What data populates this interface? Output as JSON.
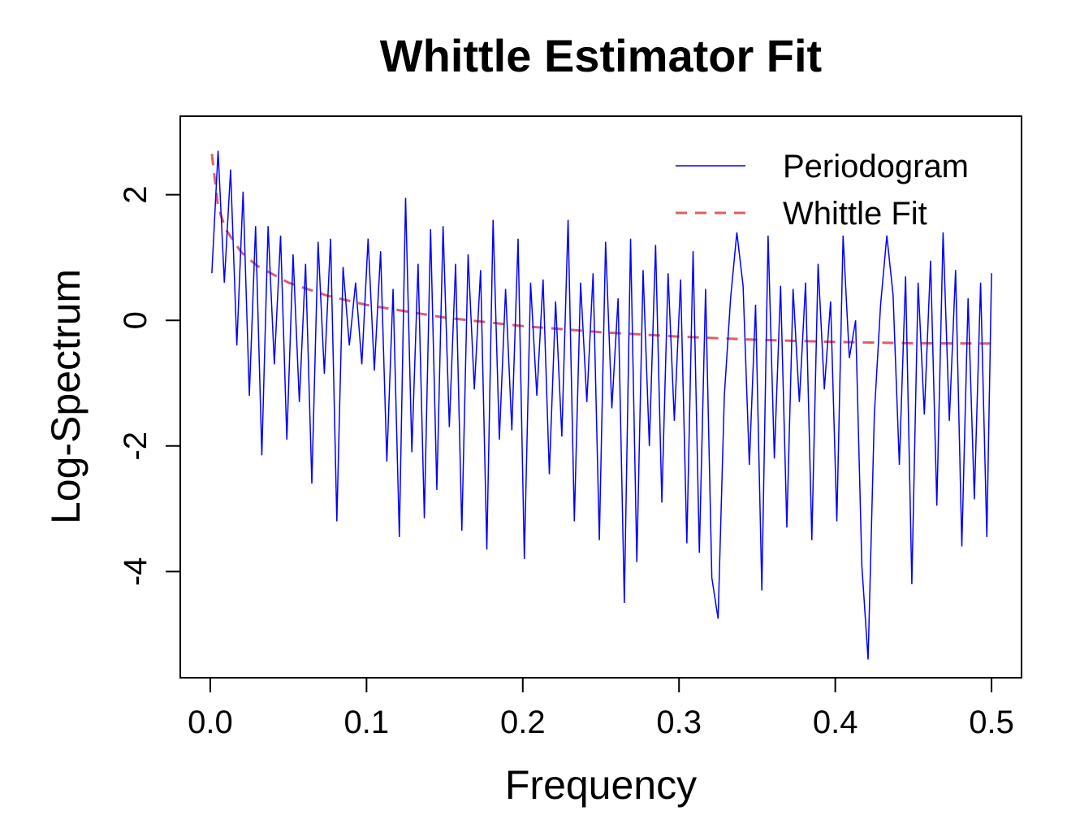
{
  "chart_data": {
    "type": "line",
    "title": "Whittle Estimator Fit",
    "x_label": "Frequency",
    "y_label": "Log-Spectrum",
    "xlim": [
      -0.0192,
      0.5192
    ],
    "ylim": [
      -5.69,
      3.25
    ],
    "xticks": [
      {
        "value": 0,
        "label": "0.0"
      },
      0.1,
      0.2,
      0.3,
      0.4,
      0.5
    ],
    "yticks": [
      -4,
      -2,
      0,
      2
    ],
    "legend": "top-right",
    "series": [
      {
        "name": "Periodogram",
        "color": "#0000ff",
        "dash": "solid",
        "x": [
          0.001,
          0.005,
          0.009,
          0.013,
          0.017,
          0.021,
          0.025,
          0.029,
          0.033,
          0.037,
          0.041,
          0.045,
          0.049,
          0.053,
          0.057,
          0.061,
          0.065,
          0.069,
          0.073,
          0.077,
          0.081,
          0.085,
          0.089,
          0.093,
          0.097,
          0.101,
          0.105,
          0.109,
          0.113,
          0.117,
          0.121,
          0.125,
          0.129,
          0.133,
          0.137,
          0.141,
          0.145,
          0.149,
          0.153,
          0.157,
          0.161,
          0.165,
          0.169,
          0.173,
          0.177,
          0.181,
          0.185,
          0.189,
          0.193,
          0.197,
          0.201,
          0.205,
          0.209,
          0.213,
          0.217,
          0.221,
          0.225,
          0.229,
          0.233,
          0.237,
          0.241,
          0.245,
          0.249,
          0.253,
          0.257,
          0.261,
          0.265,
          0.269,
          0.273,
          0.277,
          0.281,
          0.285,
          0.289,
          0.293,
          0.297,
          0.301,
          0.305,
          0.309,
          0.313,
          0.317,
          0.321,
          0.325,
          0.329,
          0.333,
          0.337,
          0.341,
          0.345,
          0.349,
          0.353,
          0.357,
          0.361,
          0.365,
          0.369,
          0.373,
          0.377,
          0.381,
          0.385,
          0.389,
          0.393,
          0.397,
          0.401,
          0.405,
          0.409,
          0.413,
          0.417,
          0.421,
          0.425,
          0.429,
          0.433,
          0.437,
          0.441,
          0.445,
          0.449,
          0.453,
          0.457,
          0.461,
          0.465,
          0.469,
          0.473,
          0.477,
          0.481,
          0.485,
          0.489,
          0.493,
          0.497,
          0.5
        ],
        "values": [
          0.75,
          2.7,
          0.6,
          2.4,
          -0.4,
          2.05,
          -1.2,
          1.5,
          -2.15,
          1.5,
          -0.7,
          1.35,
          -1.9,
          1.05,
          -1.3,
          0.9,
          -2.6,
          1.25,
          -0.85,
          1.3,
          -3.2,
          0.85,
          -0.4,
          0.6,
          -0.7,
          1.3,
          -0.8,
          1.1,
          -2.25,
          0.5,
          -3.45,
          1.95,
          -2.1,
          0.9,
          -3.15,
          1.45,
          -2.7,
          1.5,
          -1.7,
          0.9,
          -3.35,
          1.05,
          -1.1,
          0.8,
          -3.65,
          1.6,
          -1.9,
          0.5,
          -1.75,
          1.3,
          -3.8,
          0.6,
          -1.2,
          0.65,
          -2.45,
          0.3,
          -1.85,
          1.6,
          -3.2,
          0.6,
          -1.3,
          0.75,
          -3.5,
          1.25,
          -1.4,
          0.35,
          -4.5,
          1.3,
          -3.85,
          0.8,
          -2.0,
          1.2,
          -2.9,
          0.75,
          -1.6,
          0.65,
          -3.55,
          1.1,
          -3.7,
          0.5,
          -4.1,
          -4.75,
          -1.2,
          0.35,
          1.4,
          0.55,
          -2.3,
          0.25,
          -4.3,
          1.35,
          -2.2,
          0.55,
          -3.3,
          0.5,
          -1.3,
          0.6,
          -3.5,
          0.9,
          -1.1,
          0.3,
          -3.2,
          1.35,
          -0.6,
          0.0,
          -3.9,
          -5.4,
          -1.5,
          0.25,
          1.35,
          0.4,
          -2.3,
          0.7,
          -4.2,
          0.6,
          -1.5,
          0.95,
          -2.95,
          1.4,
          -1.6,
          0.8,
          -3.6,
          0.35,
          -2.85,
          0.6,
          -3.45,
          0.75
        ]
      },
      {
        "name": "Whittle Fit",
        "color": "#df5f5f",
        "dash": "dashed",
        "x": [
          0.001,
          0.005,
          0.01,
          0.02,
          0.03,
          0.05,
          0.075,
          0.1,
          0.15,
          0.2,
          0.25,
          0.3,
          0.35,
          0.4,
          0.45,
          0.5
        ],
        "values": [
          2.65,
          1.807,
          1.443,
          1.08,
          0.868,
          0.6,
          0.392,
          0.245,
          0.044,
          -0.092,
          -0.189,
          -0.259,
          -0.31,
          -0.344,
          -0.364,
          -0.37
        ]
      }
    ]
  }
}
